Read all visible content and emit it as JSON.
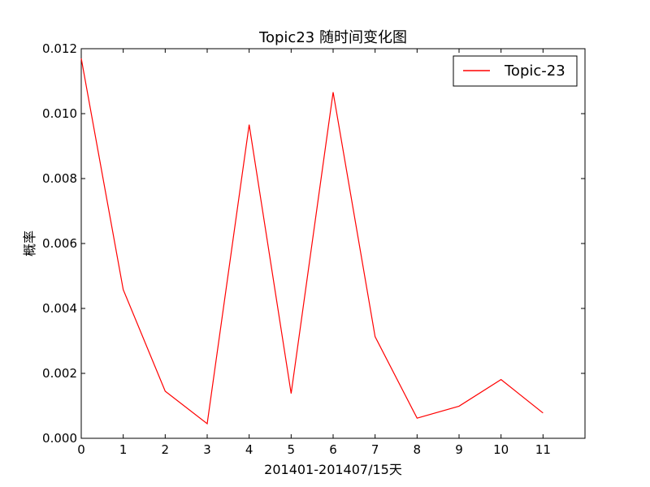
{
  "chart_data": {
    "type": "line",
    "title": "Topic23 随时间变化图",
    "xlabel": "201401-201407/15天",
    "ylabel": "概率",
    "x": [
      0,
      1,
      2,
      3,
      4,
      5,
      6,
      7,
      8,
      9,
      10,
      11
    ],
    "xlim": [
      0,
      12
    ],
    "ylim": [
      0,
      0.012
    ],
    "xticks": [
      "0",
      "1",
      "2",
      "3",
      "4",
      "5",
      "6",
      "7",
      "8",
      "9",
      "10",
      "11"
    ],
    "yticks": [
      "0.000",
      "0.002",
      "0.004",
      "0.006",
      "0.008",
      "0.010",
      "0.012"
    ],
    "series": [
      {
        "name": "Topic-23",
        "color": "#ff0000",
        "values": [
          0.0117,
          0.00458,
          0.00145,
          0.00045,
          0.00966,
          0.00138,
          0.01066,
          0.00313,
          0.00062,
          0.00099,
          0.00181,
          0.00078
        ]
      }
    ],
    "legend": {
      "position": "top-right",
      "entries": [
        "Topic-23"
      ]
    },
    "grid": false
  }
}
